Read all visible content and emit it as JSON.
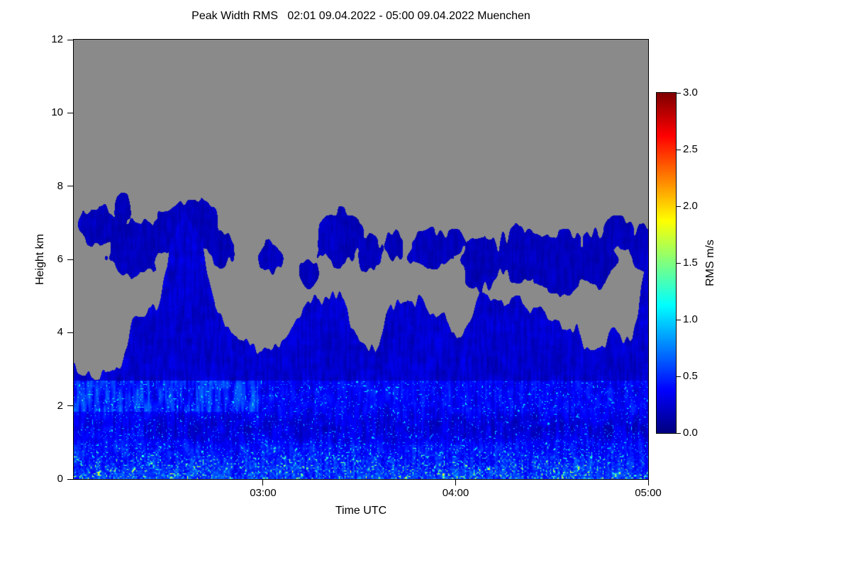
{
  "chart_data": {
    "type": "heatmap",
    "title": "Peak Width RMS   02:01 09.04.2022 - 05:00 09.04.2022 Muenchen",
    "station": "Muenchen",
    "time_start": "02:01 09.04.2022",
    "time_end": "05:00 09.04.2022",
    "xlabel": "Time UTC",
    "ylabel": "Height km",
    "x_total_minutes": 179,
    "x_ticks": [
      {
        "label": "03:00",
        "minutes_from_start": 59
      },
      {
        "label": "04:00",
        "minutes_from_start": 119
      },
      {
        "label": "05:00",
        "minutes_from_start": 179
      }
    ],
    "y_range": [
      0,
      12
    ],
    "y_ticks": [
      {
        "label": "0",
        "value": 0
      },
      {
        "label": "2",
        "value": 2
      },
      {
        "label": "4",
        "value": 4
      },
      {
        "label": "6",
        "value": 6
      },
      {
        "label": "8",
        "value": 8
      },
      {
        "label": "10",
        "value": 10
      },
      {
        "label": "12",
        "value": 12
      }
    ],
    "colorbar": {
      "label": "RMS m/s",
      "range": [
        0,
        3
      ],
      "colormap": "jet",
      "ticks": [
        {
          "label": "0.0",
          "value": 0.0
        },
        {
          "label": "0.5",
          "value": 0.5
        },
        {
          "label": "1.0",
          "value": 1.0
        },
        {
          "label": "1.5",
          "value": 1.5
        },
        {
          "label": "2.0",
          "value": 2.0
        },
        {
          "label": "2.5",
          "value": 2.5
        },
        {
          "label": "3.0",
          "value": 3.0
        }
      ]
    },
    "field": {
      "seed": 42,
      "no_data_rgb": [
        138,
        138,
        138
      ],
      "typical_rms_boundary_layer": [
        0.2,
        1.2
      ],
      "typical_rms_cloud": [
        0.05,
        0.35
      ],
      "base_top_sample_minutes": 5,
      "base_top_km": [
        2.7,
        2.8,
        3.0,
        3.3,
        4.2,
        4.8,
        5.6,
        7.6,
        6.8,
        4.6,
        3.9,
        3.6,
        3.4,
        3.6,
        4.4,
        4.9,
        5.0,
        4.8,
        3.6,
        3.3,
        4.4,
        4.9,
        4.7,
        4.5,
        4.2,
        4.6,
        4.8,
        4.7,
        4.9,
        4.6,
        4.3,
        3.9,
        3.8,
        3.7,
        3.9,
        4.1,
        6.3
      ],
      "elevated_patches": [
        {
          "t": 9,
          "h": 6.9,
          "tw": 7,
          "hh": 0.55
        },
        {
          "t": 16,
          "h": 7.3,
          "tw": 3,
          "hh": 0.5
        },
        {
          "t": 20,
          "h": 6.4,
          "tw": 9,
          "hh": 0.8
        },
        {
          "t": 30,
          "h": 6.8,
          "tw": 5,
          "hh": 0.6
        },
        {
          "t": 38,
          "h": 7.0,
          "tw": 8,
          "hh": 0.7
        },
        {
          "t": 47,
          "h": 6.3,
          "tw": 4,
          "hh": 0.5
        },
        {
          "t": 62,
          "h": 6.1,
          "tw": 4,
          "hh": 0.45
        },
        {
          "t": 74,
          "h": 5.6,
          "tw": 3,
          "hh": 0.4
        },
        {
          "t": 84,
          "h": 6.6,
          "tw": 8,
          "hh": 0.75
        },
        {
          "t": 93,
          "h": 6.2,
          "tw": 4,
          "hh": 0.5
        },
        {
          "t": 101,
          "h": 6.4,
          "tw": 3,
          "hh": 0.4
        },
        {
          "t": 112,
          "h": 6.3,
          "tw": 7,
          "hh": 0.55
        },
        {
          "t": 120,
          "h": 6.5,
          "tw": 3,
          "hh": 0.35
        },
        {
          "t": 128,
          "h": 5.9,
          "tw": 6,
          "hh": 0.75
        },
        {
          "t": 140,
          "h": 6.1,
          "tw": 7,
          "hh": 0.8
        },
        {
          "t": 152,
          "h": 5.9,
          "tw": 10,
          "hh": 0.9
        },
        {
          "t": 163,
          "h": 6.0,
          "tw": 7,
          "hh": 0.8
        },
        {
          "t": 171,
          "h": 6.7,
          "tw": 5,
          "hh": 0.5
        },
        {
          "t": 178,
          "h": 6.3,
          "tw": 4,
          "hh": 0.6
        }
      ]
    }
  }
}
